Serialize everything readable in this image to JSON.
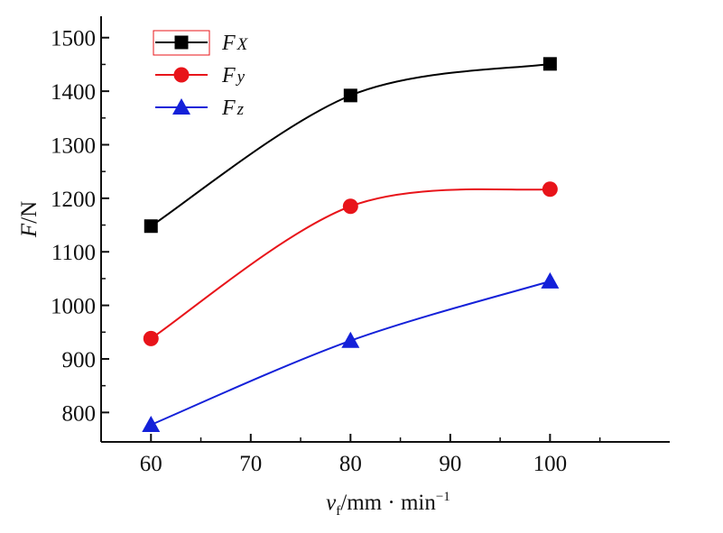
{
  "chart_data": {
    "type": "line",
    "title": "",
    "xlabel": {
      "var": "v",
      "sub": "f",
      "unit": "/mm · min",
      "sup": "−1"
    },
    "ylabel": {
      "var": "F",
      "unit": "/N"
    },
    "x": [
      60,
      80,
      100
    ],
    "xlim": [
      55,
      112
    ],
    "ylim": [
      745,
      1540
    ],
    "xticks": [
      60,
      70,
      80,
      90,
      100
    ],
    "yticks": [
      800,
      900,
      1000,
      1100,
      1200,
      1300,
      1400,
      1500
    ],
    "grid": false,
    "legend_position": "top-left",
    "series": [
      {
        "name": "Fx",
        "name_main": "F",
        "name_sub": "X",
        "color": "#000000",
        "marker": "square",
        "values": [
          1148,
          1392,
          1451
        ]
      },
      {
        "name": "Fy",
        "name_main": "F",
        "name_sub": "y",
        "color": "#e8141a",
        "marker": "circle",
        "values": [
          938,
          1185,
          1217
        ]
      },
      {
        "name": "Fz",
        "name_main": "F",
        "name_sub": "z",
        "color": "#1421d9",
        "marker": "triangle",
        "values": [
          777,
          934,
          1045
        ]
      }
    ]
  }
}
